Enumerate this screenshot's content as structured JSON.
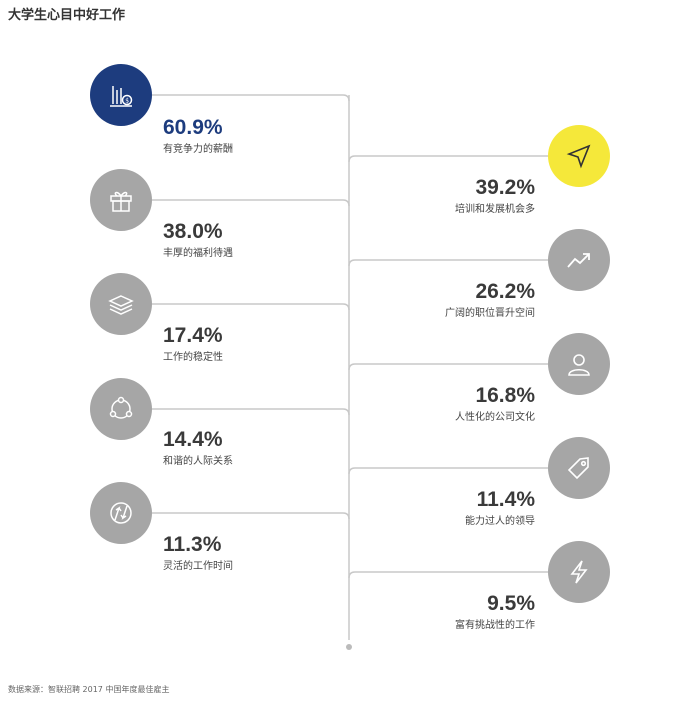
{
  "title": "大学生心目中好工作",
  "source": "数据来源：智联招聘 2017 中国年度最佳雇主",
  "colors": {
    "highlight_left": "#1d3c7e",
    "highlight_right": "#f5e83a",
    "default_circle": "#a6a6a6",
    "line": "#c8c8c8"
  },
  "chart_data": {
    "type": "bar",
    "title": "大学生心目中好工作",
    "categories": [
      "有竞争力的薪酬",
      "培训和发展机会多",
      "丰厚的福利待遇",
      "广阔的职位晋升空间",
      "工作的稳定性",
      "人性化的公司文化",
      "和谐的人际关系",
      "能力过人的领导",
      "灵活的工作时间",
      "富有挑战性的工作"
    ],
    "values": [
      60.9,
      39.2,
      38.0,
      26.2,
      17.4,
      16.8,
      14.4,
      11.4,
      11.3,
      9.5
    ],
    "unit": "%"
  },
  "items": [
    {
      "label": "有竞争力的薪酬",
      "value": "60.9%",
      "icon": "money-chart-icon"
    },
    {
      "label": "培训和发展机会多",
      "value": "39.2%",
      "icon": "navigation-arrow-icon"
    },
    {
      "label": "丰厚的福利待遇",
      "value": "38.0%",
      "icon": "gift-icon"
    },
    {
      "label": "广阔的职位晋升空间",
      "value": "26.2%",
      "icon": "trend-up-icon"
    },
    {
      "label": "工作的稳定性",
      "value": "17.4%",
      "icon": "layers-icon"
    },
    {
      "label": "人性化的公司文化",
      "value": "16.8%",
      "icon": "person-icon"
    },
    {
      "label": "和谐的人际关系",
      "value": "14.4%",
      "icon": "network-icon"
    },
    {
      "label": "能力过人的领导",
      "value": "11.4%",
      "icon": "tag-icon"
    },
    {
      "label": "灵活的工作时间",
      "value": "11.3%",
      "icon": "flex-arrows-icon"
    },
    {
      "label": "富有挑战性的工作",
      "value": "9.5%",
      "icon": "lightning-icon"
    }
  ]
}
